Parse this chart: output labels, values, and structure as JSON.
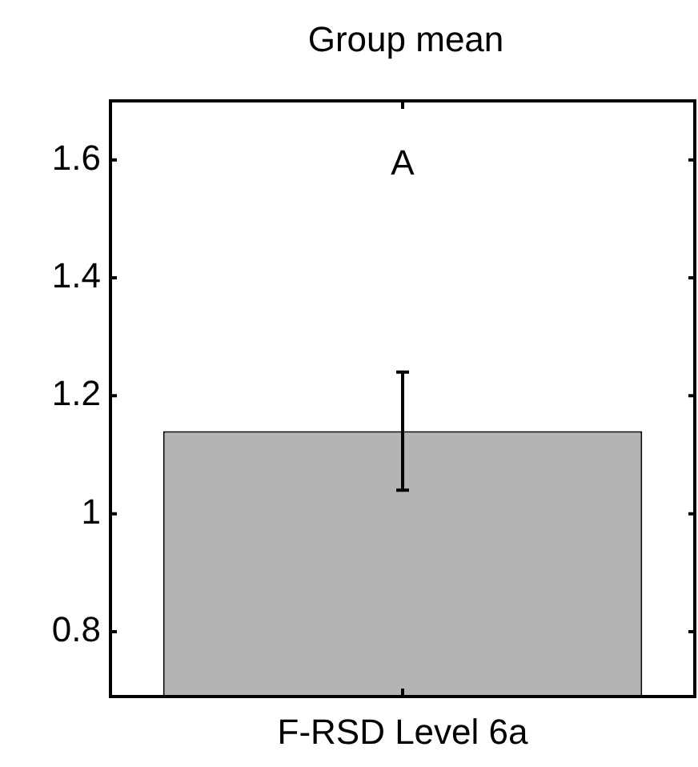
{
  "chart_data": {
    "type": "bar",
    "title": "Group mean",
    "categories": [
      "F-RSD Level 6a"
    ],
    "values": [
      1.14
    ],
    "errors": [
      [
        1.04,
        1.24
      ]
    ],
    "color": "#b4b4b4",
    "ylim": [
      0.69,
      1.7
    ],
    "yticks": [
      {
        "value": 0.8,
        "label": "0.8"
      },
      1,
      {
        "value": 1.2,
        "label": "1.2"
      },
      {
        "value": 1.4,
        "label": "1.4"
      },
      {
        "value": 1.6,
        "label": "1.6"
      }
    ],
    "grid": false,
    "legend": false,
    "annotations": [
      "A"
    ]
  }
}
